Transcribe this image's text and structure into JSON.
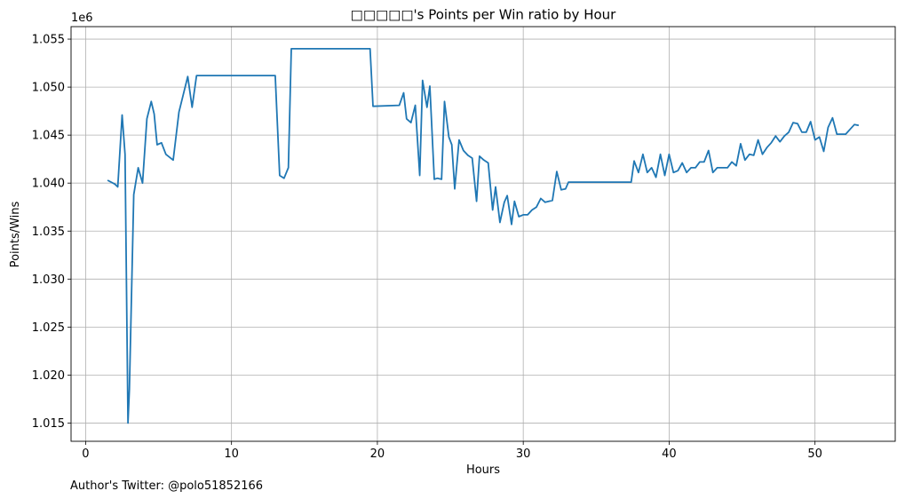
{
  "chart_data": {
    "type": "line",
    "title": "□□□□□'s Points per Win ratio by Hour",
    "xlabel": "Hours",
    "ylabel": "Points/Wins",
    "y_offset_label": "1e6",
    "footer": "Author's Twitter: @polo51852166",
    "xlim": [
      -1,
      55.5
    ],
    "ylim": [
      1.0131,
      1.0563
    ],
    "x_ticks": [
      0,
      10,
      20,
      30,
      40,
      50
    ],
    "x_tick_labels": [
      "0",
      "10",
      "20",
      "30",
      "40",
      "50"
    ],
    "y_ticks": [
      1.015,
      1.02,
      1.025,
      1.03,
      1.035,
      1.04,
      1.045,
      1.05,
      1.055
    ],
    "y_tick_labels": [
      "1.015",
      "1.020",
      "1.025",
      "1.030",
      "1.035",
      "1.040",
      "1.045",
      "1.050",
      "1.055"
    ],
    "grid": true,
    "line_color": "#1f77b4",
    "x": [
      1.5,
      2.0,
      2.2,
      2.5,
      2.7,
      2.9,
      3.0,
      3.3,
      3.6,
      3.9,
      4.2,
      4.5,
      4.7,
      4.9,
      5.2,
      5.5,
      6.0,
      6.4,
      7.0,
      7.3,
      7.6,
      7.9,
      10.0,
      13.0,
      13.3,
      13.6,
      13.9,
      14.1,
      19.5,
      19.7,
      21.5,
      21.8,
      22.0,
      22.3,
      22.6,
      22.9,
      23.1,
      23.4,
      23.6,
      23.9,
      24.1,
      24.4,
      24.6,
      24.9,
      25.1,
      25.3,
      25.6,
      25.9,
      26.2,
      26.5,
      26.8,
      27.0,
      27.3,
      27.6,
      27.9,
      28.1,
      28.4,
      28.7,
      28.9,
      29.2,
      29.4,
      29.7,
      30.0,
      30.3,
      30.6,
      30.9,
      31.2,
      31.5,
      32.0,
      32.3,
      32.6,
      32.9,
      33.1,
      34.0,
      37.4,
      37.6,
      37.9,
      38.2,
      38.5,
      38.8,
      39.1,
      39.4,
      39.7,
      40.0,
      40.3,
      40.6,
      40.9,
      41.2,
      41.5,
      41.8,
      42.1,
      42.4,
      42.7,
      43.0,
      43.3,
      43.7,
      44.0,
      44.3,
      44.6,
      44.9,
      45.2,
      45.5,
      45.8,
      46.1,
      46.4,
      46.7,
      47.0,
      47.3,
      47.6,
      47.9,
      48.2,
      48.5,
      48.8,
      49.1,
      49.4,
      49.7,
      50.0,
      50.3,
      50.6,
      50.9,
      51.2,
      51.5,
      51.8,
      52.1,
      52.4,
      52.7,
      53.0
    ],
    "y": [
      1.0403,
      1.0399,
      1.0396,
      1.0471,
      1.043,
      1.015,
      1.0185,
      1.0388,
      1.0416,
      1.04,
      1.0467,
      1.0485,
      1.0472,
      1.044,
      1.0442,
      1.043,
      1.0424,
      1.0474,
      1.0511,
      1.0479,
      1.0512,
      1.0512,
      1.0512,
      1.0512,
      1.0408,
      1.0405,
      1.0416,
      1.054,
      1.054,
      1.048,
      1.0481,
      1.0494,
      1.0467,
      1.0463,
      1.0481,
      1.0408,
      1.0507,
      1.0479,
      1.0501,
      1.0404,
      1.0405,
      1.0404,
      1.0485,
      1.0448,
      1.044,
      1.0394,
      1.0445,
      1.0434,
      1.0429,
      1.0426,
      1.0381,
      1.0428,
      1.0424,
      1.0421,
      1.0372,
      1.0396,
      1.0359,
      1.038,
      1.0387,
      1.0357,
      1.0381,
      1.0365,
      1.0367,
      1.0367,
      1.0372,
      1.0375,
      1.0384,
      1.038,
      1.0382,
      1.0412,
      1.0393,
      1.0394,
      1.0401,
      1.0401,
      1.0401,
      1.0423,
      1.0411,
      1.043,
      1.0411,
      1.0416,
      1.0406,
      1.043,
      1.0408,
      1.043,
      1.0411,
      1.0413,
      1.0421,
      1.0411,
      1.0416,
      1.0416,
      1.0422,
      1.0422,
      1.0434,
      1.0411,
      1.0416,
      1.0416,
      1.0416,
      1.0422,
      1.0418,
      1.0441,
      1.0424,
      1.043,
      1.0429,
      1.0445,
      1.043,
      1.0437,
      1.0442,
      1.0449,
      1.0443,
      1.0449,
      1.0453,
      1.0463,
      1.0462,
      1.0453,
      1.0453,
      1.0464,
      1.0445,
      1.0448,
      1.0433,
      1.0458,
      1.0468,
      1.0451,
      1.0451,
      1.0451,
      1.0456,
      1.0461,
      1.046
    ]
  }
}
